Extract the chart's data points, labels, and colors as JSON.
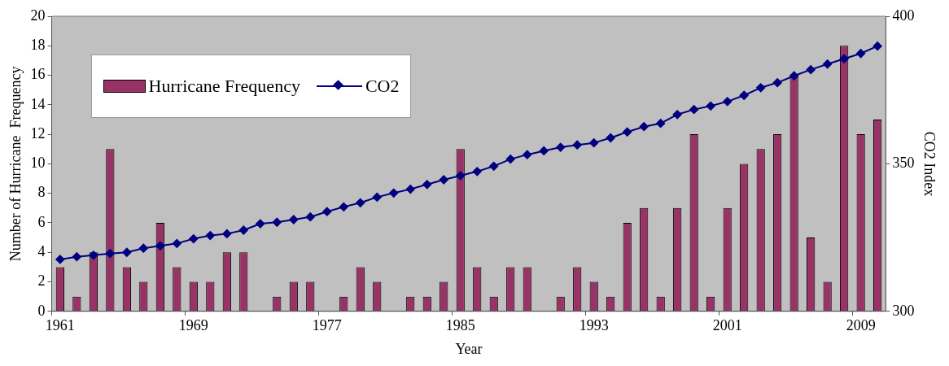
{
  "chart_data": {
    "type": "bar",
    "xlabel": "Year",
    "ylabel": "Number of Hurricane  Frequency",
    "y2label": "CO2 Index",
    "categories": [
      "1961",
      null,
      null,
      null,
      null,
      null,
      null,
      null,
      "1969",
      null,
      null,
      null,
      null,
      null,
      null,
      null,
      "1977",
      null,
      null,
      null,
      null,
      null,
      null,
      null,
      "1985",
      null,
      null,
      null,
      null,
      null,
      null,
      null,
      "1993",
      null,
      null,
      null,
      null,
      null,
      null,
      null,
      "2001",
      null,
      null,
      null,
      null,
      null,
      null,
      null,
      "2009",
      null
    ],
    "series": [
      {
        "name": "Hurricane Frequency",
        "color": "#993366",
        "values": [
          3,
          1,
          4,
          11,
          3,
          2,
          6,
          3,
          2,
          2,
          4,
          4,
          0,
          1,
          2,
          2,
          0,
          1,
          3,
          2,
          0,
          1,
          1,
          2,
          11,
          3,
          1,
          3,
          3,
          0,
          1,
          3,
          2,
          1,
          6,
          7,
          1,
          7,
          12,
          1,
          7,
          10,
          11,
          12,
          16,
          5,
          2,
          18,
          12,
          13
        ]
      },
      {
        "name": "CO2",
        "type": "line",
        "axis": "y2",
        "color": "#000080",
        "marker": "diamond",
        "values": [
          317.6,
          318.5,
          319.0,
          319.6,
          320.0,
          321.4,
          322.2,
          323.0,
          324.6,
          325.7,
          326.3,
          327.5,
          329.7,
          330.2,
          331.1,
          332.0,
          333.8,
          335.4,
          336.8,
          338.7,
          340.1,
          341.4,
          343.0,
          344.6,
          346.0,
          347.4,
          349.2,
          351.6,
          353.1,
          354.4,
          355.6,
          356.4,
          357.1,
          358.8,
          360.8,
          362.6,
          363.7,
          366.7,
          368.4,
          369.6,
          371.1,
          373.2,
          375.8,
          377.5,
          379.8,
          381.9,
          383.8,
          385.6,
          387.4,
          389.9
        ]
      }
    ],
    "ylim": [
      0,
      20
    ],
    "yticks": [
      0,
      2,
      4,
      6,
      8,
      10,
      12,
      14,
      16,
      18,
      20
    ],
    "y2lim": [
      300,
      400
    ],
    "y2ticks": [
      300,
      350,
      400
    ],
    "grid": false,
    "legend": "top left"
  }
}
